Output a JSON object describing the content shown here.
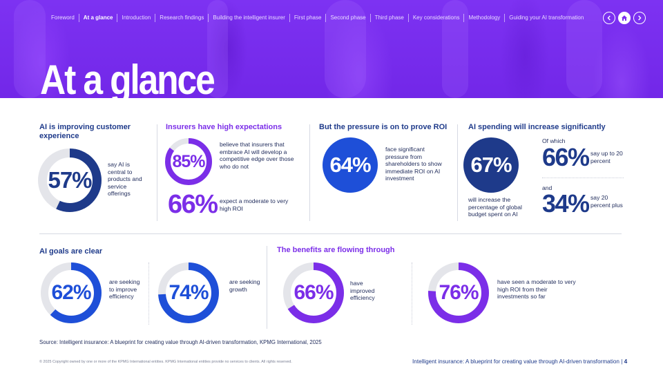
{
  "nav": {
    "items": [
      "Foreword",
      "At a glance",
      "Introduction",
      "Research findings",
      "Building the intelligent insurer",
      "First phase",
      "Second phase",
      "Third phase",
      "Key considerations",
      "Methodology",
      "Guiding your AI transformation"
    ],
    "active_index": 1,
    "buttons": [
      "chevron-left-icon",
      "home-icon",
      "chevron-right-icon"
    ]
  },
  "title": "At a glance",
  "sections": {
    "customer": {
      "heading": "AI is improving customer experience",
      "value": 57,
      "label": "57%",
      "text": "say AI is central to products and service offerings"
    },
    "expectations": {
      "heading": "Insurers have high expectations",
      "stat1": {
        "value": 85,
        "label": "85%",
        "text": "believe that insurers that embrace AI will develop a competitive edge over those who do not"
      },
      "stat2": {
        "label": "66%",
        "text": "expect a moderate to very high ROI"
      }
    },
    "roi": {
      "heading": "But the pressure is on to prove ROI",
      "label": "64%",
      "text": "face significant pressure from shareholders to show immediate ROI on AI investment"
    },
    "spending": {
      "heading": "AI spending will increase significantly",
      "label": "67%",
      "text": "will increase the percentage of global budget spent on AI",
      "of_which": "Of which",
      "sub1": {
        "label": "66%",
        "text": "say up to 20 percent"
      },
      "and": "and",
      "sub2": {
        "label": "34%",
        "text": "say 20 percent plus"
      }
    },
    "goals": {
      "heading": "AI goals are clear",
      "stat1": {
        "value": 62,
        "label": "62%",
        "text": "are seeking to improve efficiency"
      },
      "stat2": {
        "value": 74,
        "label": "74%",
        "text": "are seeking growth"
      }
    },
    "benefits": {
      "heading": "The benefits are flowing through",
      "stat1": {
        "value": 66,
        "label": "66%",
        "text": "have improved efficiency"
      },
      "stat2": {
        "value": 76,
        "label": "76%",
        "text": "have seen a moderate to very high ROI from their investments so far"
      }
    }
  },
  "source": "Source: Intelligent insurance: A blueprint for creating value through AI-driven transformation, KPMG International, 2025",
  "copyright": "© 2025 Copyright owned by one or more of the KPMG International entities. KPMG International entities provide no services to clients. All rights reserved.",
  "footer": {
    "title": "Intelligent insurance: A blueprint for creating value through AI-driven transformation",
    "separator": "|",
    "page": "4"
  },
  "colors": {
    "purple": "#7b2cf0",
    "navy": "#1e3a8a",
    "blue": "#1e4fd8",
    "violet": "#7b2ee8",
    "track": "#e4e5ea"
  }
}
